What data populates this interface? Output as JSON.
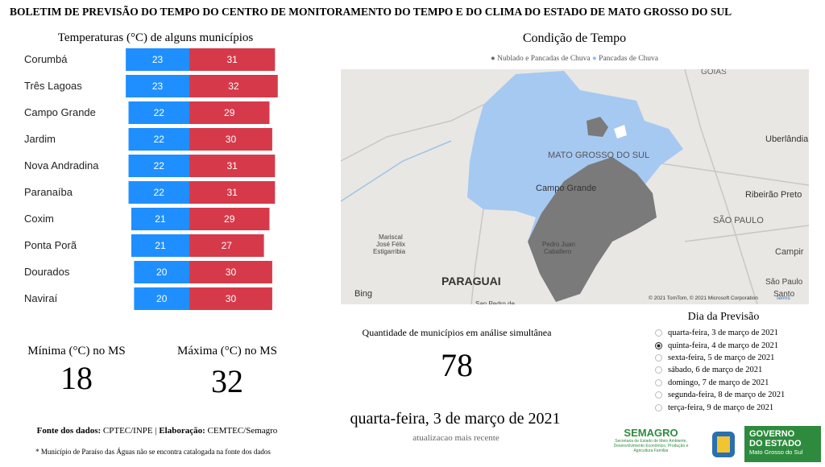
{
  "header": {
    "title": "BOLETIM DE PREVISÃO DO TEMPO DO CENTRO DE MONITORAMENTO DO TEMPO E DO CLIMA DO ESTADO DE MATO GROSSO DO SUL"
  },
  "temperatures": {
    "title": "Temperaturas (°C) de alguns municípios",
    "categories": [
      "Corumbá",
      "Três Lagoas",
      "Campo Grande",
      "Jardim",
      "Nova Andradina",
      "Paranaíba",
      "Coxim",
      "Ponta Porã",
      "Dourados",
      "Naviraí"
    ],
    "series": [
      {
        "name": "Mínima",
        "color": "#1f8fff",
        "values": [
          23,
          23,
          22,
          22,
          22,
          22,
          21,
          21,
          20,
          20
        ]
      },
      {
        "name": "Máxima",
        "color": "#d63a4a",
        "values": [
          31,
          32,
          29,
          30,
          31,
          31,
          29,
          27,
          30,
          30
        ]
      }
    ]
  },
  "kpis": [
    {
      "label": "Mínima (°C) no MS",
      "value": 18
    },
    {
      "label": "Máxima (°C) no MS",
      "value": 32
    }
  ],
  "footer": {
    "source_label": "Fonte dos dados:",
    "source": "CPTEC/INPE",
    "separator": "|",
    "author_label": "Elaboração:",
    "author": "CEMTEC/Semagro",
    "note": "* Município de Paraíso das Águas não se encontra catalogada na fonte dos dados"
  },
  "map": {
    "title": "Condição de Tempo",
    "legend": [
      {
        "name": "Nublado e Pancadas de Chuva",
        "color": "#6b6b6b"
      },
      {
        "name": "Pancadas de Chuva",
        "color": "#8fbff0"
      }
    ],
    "labels": [
      "GOIÁS",
      "Uberlândia",
      "MATO GROSSO DO SUL",
      "Campo Grande",
      "Ribeirão Preto",
      "SÃO PAULO",
      "Mariscal",
      "José Félix",
      "Estigarribia",
      "Pedro Juan",
      "Caballero",
      "PARAGUAI",
      "Campir",
      "São Paulo",
      "Santo",
      "San Pedro de"
    ],
    "provider": "Bing",
    "credits": "© 2021 TomTom, © 2021 Microsoft Corporation",
    "terms": "Terms"
  },
  "count": {
    "label": "Quantidade de municípios em análise simultânea",
    "value": 78
  },
  "date": {
    "value": "quarta-feira, 3 de março de 2021",
    "label": "atualizacao mais recente"
  },
  "forecast": {
    "title": "Dia da Previsão",
    "selected": 1,
    "options": [
      "quarta-feira, 3 de março de 2021",
      "quinta-feira, 4 de março de 2021",
      "sexta-feira, 5 de março de 2021",
      "sábado, 6 de março de 2021",
      "domingo, 7 de março de 2021",
      "segunda-feira, 8 de março de 2021",
      "terça-feira, 9 de março de 2021"
    ]
  },
  "logos": {
    "semagro": "SEMAGRO",
    "semagro_sub": "Secretaria de Estado de Meio Ambiente, Desenvolvimento Econômico, Produção e Agricultura Familiar",
    "gov_line1": "GOVERNO",
    "gov_line2": "DO ESTADO",
    "gov_line3": "Mato Grosso do Sul"
  }
}
